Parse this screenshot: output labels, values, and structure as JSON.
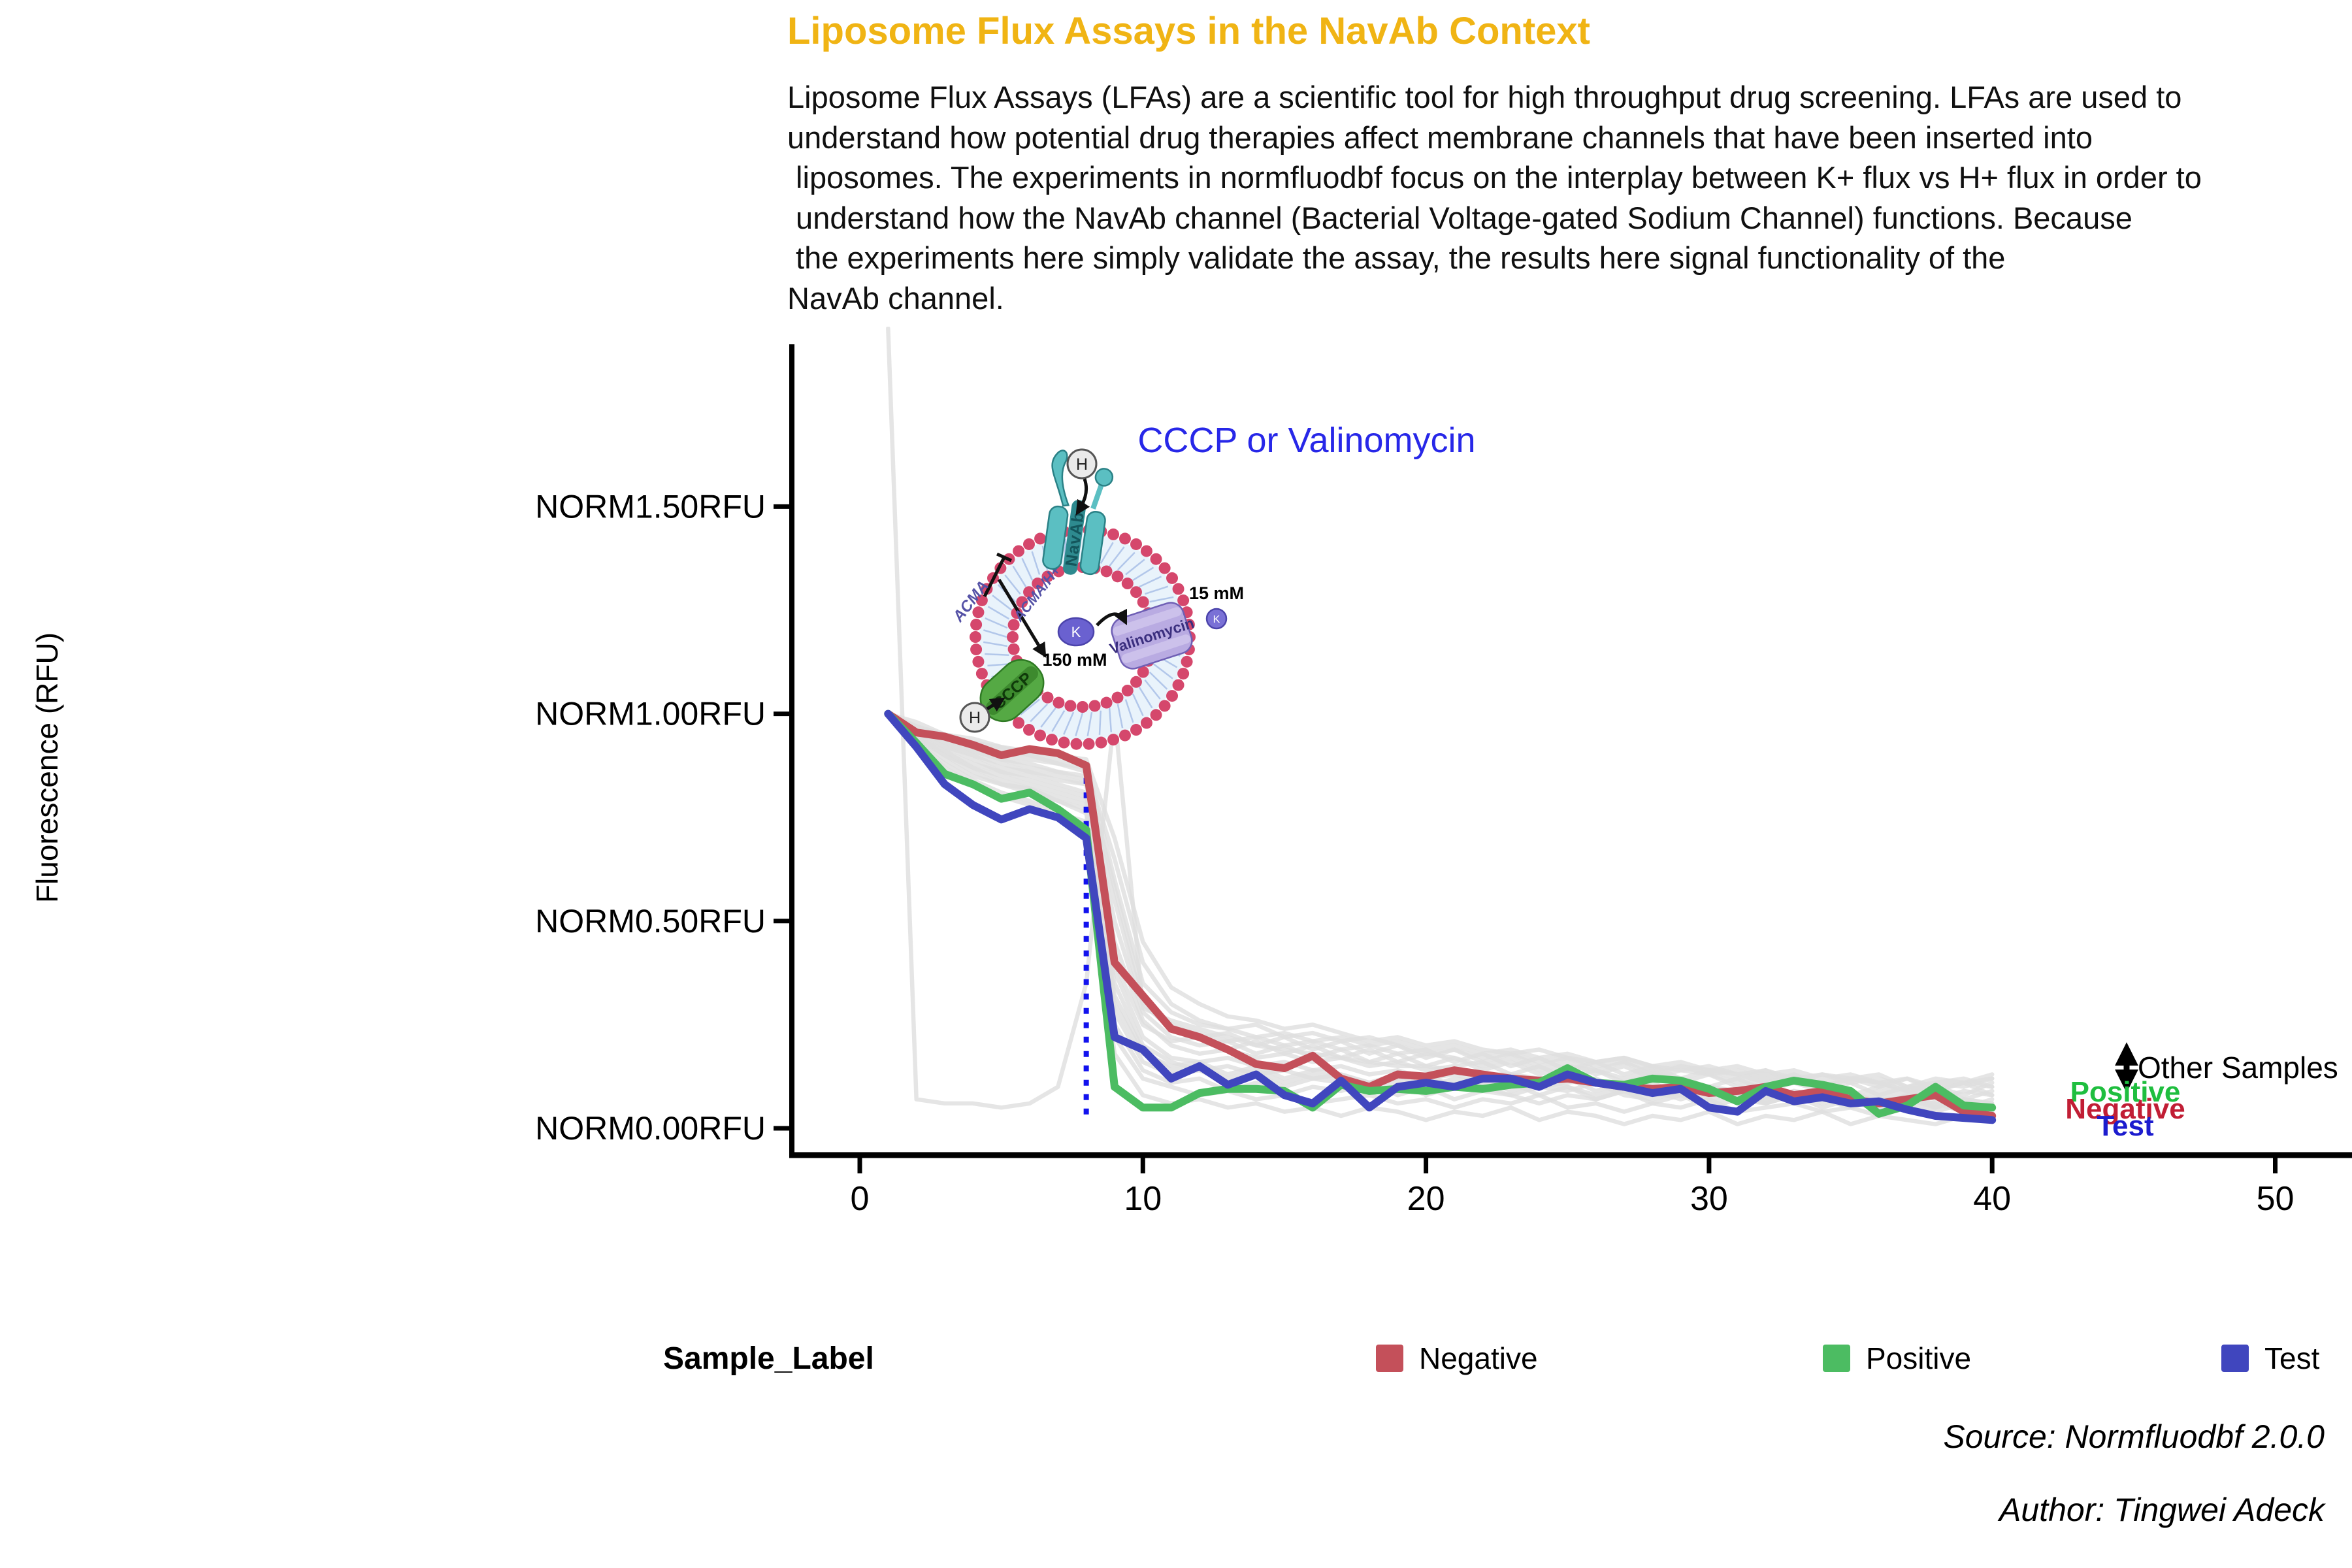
{
  "title": "Liposome Flux Assays in the NavAb Context",
  "description": {
    "text": "Liposome Flux Assays (LFAs) are a scientific tool for high throughput drug screening. LFAs are used to\nunderstand how potential drug therapies affect membrane channels that have been inserted into\n liposomes. The experiments in normfluodbf focus on the interplay between K+ flux vs H+ flux in order to\n understand how the NavAb channel (Bacterial Voltage-gated Sodium Channel) functions. Because\n the experiments here simply validate the assay, the results here signal functionality of the\nNavAb channel."
  },
  "colors": {
    "title": "#F0B414",
    "axis": "#000000",
    "event_line": "#1212EE",
    "event_label": "#2727E8",
    "annotation_positive": "#1FBE3F",
    "annotation_negative": "#C11E35",
    "annotation_test": "#1C1CCE"
  },
  "chart_data": {
    "type": "line",
    "title": "",
    "xlabel": "",
    "ylabel": "Fluorescence (RFU)",
    "x_start": 1,
    "x_step": 1,
    "xlim": [
      -2.4,
      52.7
    ],
    "ylim": [
      -0.07,
      1.88
    ],
    "grid": "off",
    "legend_position": "bottom",
    "x_ticks": [
      0,
      10,
      20,
      30,
      40,
      50
    ],
    "y_ticks": [
      {
        "value": 0.0,
        "label": "NORM0.00RFU"
      },
      {
        "value": 0.5,
        "label": "NORM0.50RFU"
      },
      {
        "value": 1.0,
        "label": "NORM1.00RFU"
      },
      {
        "value": 1.5,
        "label": "NORM1.50RFU"
      }
    ],
    "event_line": {
      "x": 8,
      "y_from": 0.015,
      "y_to": 0.88,
      "style": "dotted"
    },
    "series": [
      {
        "name": "Negative",
        "color": "#C4505A",
        "values": [
          1.0,
          0.955,
          0.945,
          0.925,
          0.9,
          0.915,
          0.905,
          0.875,
          0.4,
          0.32,
          0.24,
          0.22,
          0.19,
          0.155,
          0.145,
          0.175,
          0.12,
          0.1,
          0.13,
          0.125,
          0.14,
          0.13,
          0.12,
          0.115,
          0.12,
          0.11,
          0.1,
          0.095,
          0.1,
          0.085,
          0.09,
          0.1,
          0.08,
          0.09,
          0.07,
          0.06,
          0.07,
          0.08,
          0.04,
          0.03
        ]
      },
      {
        "name": "Positive",
        "color": "#4CBC62",
        "values": [
          1.0,
          0.93,
          0.855,
          0.83,
          0.795,
          0.81,
          0.77,
          0.72,
          0.1,
          0.05,
          0.05,
          0.085,
          0.095,
          0.095,
          0.09,
          0.05,
          0.105,
          0.09,
          0.095,
          0.09,
          0.1,
          0.095,
          0.105,
          0.11,
          0.145,
          0.11,
          0.105,
          0.12,
          0.115,
          0.095,
          0.065,
          0.1,
          0.115,
          0.105,
          0.09,
          0.035,
          0.055,
          0.1,
          0.055,
          0.05
        ]
      },
      {
        "name": "Test",
        "color": "#4046BE",
        "values": [
          1.0,
          0.92,
          0.83,
          0.78,
          0.745,
          0.77,
          0.75,
          0.7,
          0.22,
          0.19,
          0.12,
          0.15,
          0.105,
          0.13,
          0.08,
          0.06,
          0.115,
          0.05,
          0.1,
          0.11,
          0.1,
          0.12,
          0.12,
          0.1,
          0.13,
          0.11,
          0.1,
          0.085,
          0.095,
          0.05,
          0.04,
          0.09,
          0.065,
          0.075,
          0.06,
          0.065,
          0.045,
          0.03,
          0.025,
          0.02
        ]
      }
    ],
    "other_samples": {
      "name": "Other Samples",
      "color": "#DEDEDE",
      "series": [
        [
          1.93,
          0.07,
          0.06,
          0.06,
          0.05,
          0.06,
          0.1,
          0.35,
          1.0,
          0.29,
          0.26,
          0.24,
          0.22,
          0.2,
          0.19,
          0.18,
          0.17,
          0.16,
          0.15,
          0.15,
          0.14,
          0.13,
          0.13,
          0.12,
          0.12,
          0.11,
          0.11,
          0.1,
          0.1,
          0.09,
          0.09,
          0.08,
          0.08,
          0.08,
          0.07,
          0.07,
          0.07,
          0.06,
          0.06,
          0.06
        ],
        [
          1.0,
          0.97,
          0.94,
          0.92,
          0.9,
          0.89,
          0.88,
          0.86,
          0.4,
          0.25,
          0.21,
          0.22,
          0.19,
          0.21,
          0.18,
          0.2,
          0.17,
          0.19,
          0.16,
          0.18,
          0.17,
          0.15,
          0.17,
          0.14,
          0.16,
          0.13,
          0.15,
          0.12,
          0.14,
          0.13,
          0.11,
          0.13,
          0.12,
          0.1,
          0.12,
          0.11,
          0.09,
          0.11,
          0.1,
          0.12
        ],
        [
          1.0,
          0.95,
          0.91,
          0.88,
          0.86,
          0.85,
          0.83,
          0.81,
          0.3,
          0.18,
          0.15,
          0.16,
          0.13,
          0.15,
          0.12,
          0.14,
          0.13,
          0.11,
          0.13,
          0.1,
          0.12,
          0.11,
          0.13,
          0.1,
          0.12,
          0.09,
          0.11,
          0.1,
          0.08,
          0.1,
          0.09,
          0.11,
          0.08,
          0.1,
          0.07,
          0.09,
          0.08,
          0.1,
          0.07,
          0.09
        ],
        [
          1.0,
          0.96,
          0.93,
          0.91,
          0.89,
          0.87,
          0.86,
          0.84,
          0.55,
          0.3,
          0.24,
          0.22,
          0.23,
          0.2,
          0.22,
          0.19,
          0.21,
          0.18,
          0.2,
          0.17,
          0.19,
          0.16,
          0.18,
          0.15,
          0.17,
          0.14,
          0.16,
          0.13,
          0.15,
          0.14,
          0.12,
          0.14,
          0.11,
          0.13,
          0.12,
          0.1,
          0.12,
          0.09,
          0.11,
          0.1
        ],
        [
          1.0,
          0.94,
          0.89,
          0.85,
          0.83,
          0.81,
          0.79,
          0.77,
          0.25,
          0.14,
          0.11,
          0.12,
          0.09,
          0.11,
          0.08,
          0.1,
          0.09,
          0.11,
          0.08,
          0.1,
          0.07,
          0.09,
          0.08,
          0.06,
          0.08,
          0.07,
          0.09,
          0.06,
          0.08,
          0.05,
          0.07,
          0.06,
          0.08,
          0.05,
          0.07,
          0.04,
          0.06,
          0.05,
          0.07,
          0.04
        ],
        [
          1.0,
          0.97,
          0.95,
          0.93,
          0.92,
          0.9,
          0.89,
          0.88,
          0.6,
          0.35,
          0.28,
          0.25,
          0.24,
          0.22,
          0.23,
          0.21,
          0.22,
          0.2,
          0.21,
          0.19,
          0.2,
          0.18,
          0.19,
          0.17,
          0.18,
          0.16,
          0.17,
          0.15,
          0.16,
          0.14,
          0.15,
          0.13,
          0.14,
          0.12,
          0.13,
          0.11,
          0.12,
          0.1,
          0.11,
          0.12
        ],
        [
          1.0,
          0.93,
          0.88,
          0.84,
          0.81,
          0.79,
          0.76,
          0.74,
          0.22,
          0.12,
          0.1,
          0.08,
          0.09,
          0.07,
          0.08,
          0.06,
          0.07,
          0.08,
          0.06,
          0.07,
          0.05,
          0.07,
          0.06,
          0.08,
          0.05,
          0.06,
          0.04,
          0.06,
          0.05,
          0.07,
          0.04,
          0.05,
          0.06,
          0.04,
          0.05,
          0.03,
          0.05,
          0.04,
          0.06,
          0.03
        ],
        [
          1.0,
          0.96,
          0.92,
          0.9,
          0.87,
          0.86,
          0.84,
          0.83,
          0.45,
          0.26,
          0.2,
          0.18,
          0.19,
          0.17,
          0.18,
          0.16,
          0.17,
          0.15,
          0.16,
          0.14,
          0.15,
          0.16,
          0.13,
          0.15,
          0.12,
          0.14,
          0.11,
          0.13,
          0.12,
          0.1,
          0.12,
          0.09,
          0.11,
          0.1,
          0.08,
          0.1,
          0.09,
          0.07,
          0.09,
          0.08
        ],
        [
          1.0,
          0.95,
          0.9,
          0.87,
          0.84,
          0.82,
          0.8,
          0.78,
          0.35,
          0.2,
          0.16,
          0.14,
          0.15,
          0.13,
          0.14,
          0.12,
          0.13,
          0.11,
          0.12,
          0.13,
          0.1,
          0.12,
          0.09,
          0.11,
          0.1,
          0.08,
          0.1,
          0.09,
          0.07,
          0.09,
          0.08,
          0.06,
          0.08,
          0.07,
          0.09,
          0.06,
          0.08,
          0.05,
          0.07,
          0.06
        ],
        [
          1.0,
          0.97,
          0.94,
          0.93,
          0.91,
          0.9,
          0.88,
          0.87,
          0.65,
          0.4,
          0.3,
          0.26,
          0.24,
          0.25,
          0.22,
          0.23,
          0.21,
          0.22,
          0.2,
          0.18,
          0.19,
          0.17,
          0.18,
          0.16,
          0.17,
          0.15,
          0.16,
          0.14,
          0.15,
          0.13,
          0.14,
          0.12,
          0.13,
          0.11,
          0.12,
          0.13,
          0.1,
          0.12,
          0.11,
          0.13
        ],
        [
          1.0,
          0.94,
          0.9,
          0.86,
          0.83,
          0.82,
          0.79,
          0.76,
          0.28,
          0.16,
          0.13,
          0.14,
          0.11,
          0.13,
          0.1,
          0.12,
          0.11,
          0.09,
          0.11,
          0.08,
          0.1,
          0.09,
          0.11,
          0.08,
          0.1,
          0.07,
          0.09,
          0.08,
          0.1,
          0.07,
          0.09,
          0.06,
          0.08,
          0.07,
          0.05,
          0.07,
          0.06,
          0.08,
          0.05,
          0.07
        ],
        [
          1.0,
          0.96,
          0.93,
          0.9,
          0.88,
          0.86,
          0.85,
          0.83,
          0.5,
          0.28,
          0.22,
          0.2,
          0.21,
          0.18,
          0.2,
          0.17,
          0.19,
          0.16,
          0.18,
          0.15,
          0.17,
          0.14,
          0.16,
          0.13,
          0.15,
          0.14,
          0.12,
          0.14,
          0.11,
          0.13,
          0.1,
          0.12,
          0.11,
          0.09,
          0.11,
          0.08,
          0.1,
          0.09,
          0.11,
          0.08
        ],
        [
          1.0,
          0.95,
          0.92,
          0.89,
          0.86,
          0.84,
          0.82,
          0.8,
          0.38,
          0.22,
          0.17,
          0.16,
          0.17,
          0.15,
          0.16,
          0.14,
          0.15,
          0.13,
          0.14,
          0.12,
          0.13,
          0.11,
          0.12,
          0.1,
          0.11,
          0.12,
          0.09,
          0.11,
          0.08,
          0.1,
          0.09,
          0.07,
          0.09,
          0.08,
          0.06,
          0.08,
          0.07,
          0.05,
          0.07,
          0.06
        ],
        [
          1.0,
          0.98,
          0.95,
          0.94,
          0.92,
          0.91,
          0.9,
          0.89,
          0.7,
          0.45,
          0.34,
          0.3,
          0.27,
          0.26,
          0.24,
          0.25,
          0.23,
          0.21,
          0.22,
          0.2,
          0.21,
          0.19,
          0.18,
          0.19,
          0.17,
          0.16,
          0.17,
          0.15,
          0.14,
          0.15,
          0.13,
          0.14,
          0.12,
          0.13,
          0.11,
          0.12,
          0.1,
          0.11,
          0.12,
          0.1
        ],
        [
          1.0,
          0.93,
          0.87,
          0.83,
          0.8,
          0.78,
          0.75,
          0.72,
          0.18,
          0.08,
          0.06,
          0.07,
          0.05,
          0.06,
          0.04,
          0.05,
          0.03,
          0.05,
          0.04,
          0.02,
          0.04,
          0.03,
          0.05,
          0.02,
          0.04,
          0.03,
          0.01,
          0.03,
          0.02,
          0.04,
          0.01,
          0.03,
          0.02,
          0.04,
          0.01,
          0.03,
          0.02,
          0.01,
          0.03,
          0.02
        ],
        [
          1.0,
          0.96,
          0.94,
          0.91,
          0.89,
          0.88,
          0.86,
          0.85,
          0.58,
          0.32,
          0.25,
          0.23,
          0.21,
          0.22,
          0.2,
          0.21,
          0.19,
          0.2,
          0.18,
          0.19,
          0.16,
          0.18,
          0.15,
          0.17,
          0.14,
          0.16,
          0.13,
          0.15,
          0.12,
          0.14,
          0.13,
          0.11,
          0.13,
          0.1,
          0.12,
          0.11,
          0.09,
          0.1,
          0.08,
          0.11
        ],
        [
          1.0,
          0.94,
          0.91,
          0.87,
          0.85,
          0.83,
          0.81,
          0.79,
          0.32,
          0.19,
          0.14,
          0.15,
          0.12,
          0.14,
          0.11,
          0.13,
          0.12,
          0.1,
          0.12,
          0.09,
          0.11,
          0.1,
          0.08,
          0.1,
          0.09,
          0.11,
          0.08,
          0.07,
          0.09,
          0.06,
          0.08,
          0.07,
          0.09,
          0.06,
          0.08,
          0.05,
          0.07,
          0.06,
          0.04,
          0.06
        ]
      ]
    }
  },
  "chart_annotations": {
    "event_label": "CCCP or Valinomycin",
    "other_samples_label": "Other Samples",
    "positive_label": "Positive",
    "negative_label": "Negative",
    "test_label": "Test"
  },
  "diagram": {
    "navab": "NavAb",
    "acma": "ACMA",
    "acma_h": "ACMA/H+",
    "cccp": "CCCP",
    "valinomycin": "Valinomycin",
    "k_ion": "K",
    "h_ion": "H",
    "inner_conc": "150 mM",
    "outer_conc": "15 mM",
    "colors": {
      "beads": "#D5476C",
      "membrane": "#E9F3FB",
      "navab": "#5BBFC2",
      "cccp": "#55A944",
      "valinomycin": "#B9ABE2",
      "k_ion": "#6A61D0"
    }
  },
  "legend": {
    "title": "Sample_Label",
    "items": [
      {
        "label": "Negative",
        "color": "#C4505A"
      },
      {
        "label": "Positive",
        "color": "#4CBC62"
      },
      {
        "label": "Test",
        "color": "#4046BE"
      }
    ]
  },
  "footer": {
    "source": "Source: Normfluodbf 2.0.0",
    "author": "Author: Tingwei Adeck"
  }
}
